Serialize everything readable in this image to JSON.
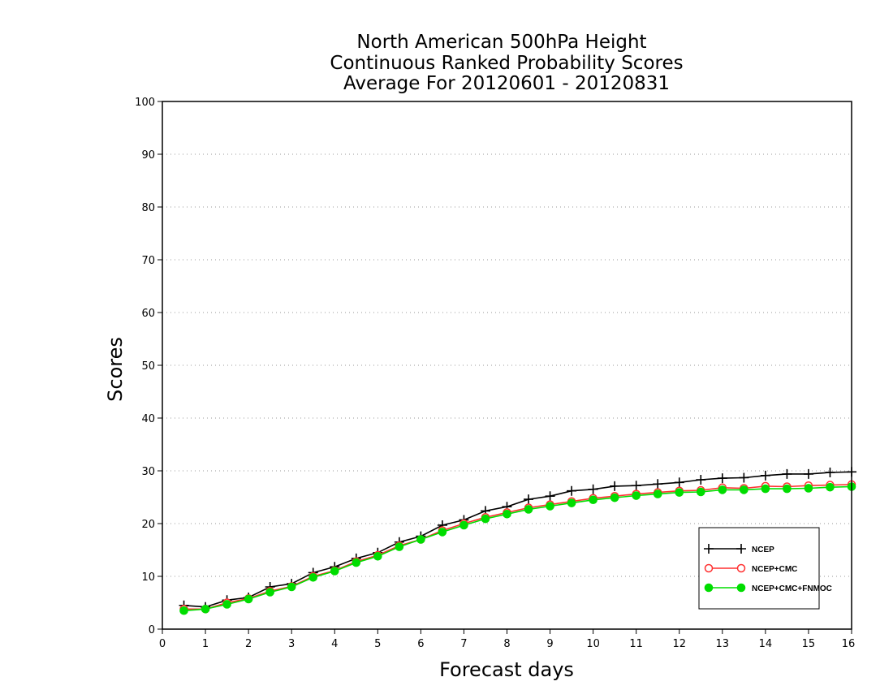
{
  "chart_data": {
    "type": "line",
    "title": [
      "North American 500hPa Height",
      "Continuous Ranked Probability Scores",
      "Average For 20120601 - 20120831"
    ],
    "xlabel": "Forecast days",
    "ylabel": "Scores",
    "xlim": [
      0,
      16
    ],
    "ylim": [
      0,
      100
    ],
    "xticks": [
      0,
      1,
      2,
      3,
      4,
      5,
      6,
      7,
      8,
      9,
      10,
      11,
      12,
      13,
      14,
      15,
      16
    ],
    "yticks": [
      0,
      10,
      20,
      30,
      40,
      50,
      60,
      70,
      80,
      90,
      100
    ],
    "grid": "horizontal dotted",
    "legend_position": "bottom-right",
    "x": [
      0.5,
      1,
      1.5,
      2,
      2.5,
      3,
      3.5,
      4,
      4.5,
      5,
      5.5,
      6,
      6.5,
      7,
      7.5,
      8,
      8.5,
      9,
      9.5,
      10,
      10.5,
      11,
      11.5,
      12,
      12.5,
      13,
      13.5,
      14,
      14.5,
      15,
      15.5,
      16
    ],
    "series": [
      {
        "name": "NCEP",
        "color": "#000000",
        "marker": "plus",
        "values": [
          4.5,
          4.2,
          5.5,
          6.0,
          8.0,
          8.6,
          10.7,
          11.8,
          13.4,
          14.5,
          16.5,
          17.6,
          19.7,
          20.7,
          22.4,
          23.2,
          24.6,
          25.2,
          26.2,
          26.5,
          27.1,
          27.2,
          27.5,
          27.8,
          28.3,
          28.6,
          28.7,
          29.1,
          29.4,
          29.4,
          29.7,
          29.8
        ]
      },
      {
        "name": "NCEP+CMC",
        "color": "#ff3030",
        "marker": "open-circle",
        "values": [
          3.8,
          3.8,
          5.0,
          5.8,
          7.2,
          8.1,
          10.0,
          11.1,
          12.8,
          14.0,
          15.8,
          17.0,
          18.7,
          20.0,
          21.2,
          22.1,
          23.0,
          23.6,
          24.2,
          24.8,
          25.2,
          25.6,
          25.9,
          26.2,
          26.3,
          26.8,
          26.7,
          27.1,
          27.0,
          27.2,
          27.3,
          27.4
        ]
      },
      {
        "name": "NCEP+CMC+FNMOC",
        "color": "#00dd00",
        "marker": "filled-circle",
        "values": [
          3.5,
          3.8,
          4.7,
          5.7,
          7.0,
          8.0,
          9.8,
          11.0,
          12.6,
          13.8,
          15.6,
          17.0,
          18.4,
          19.7,
          20.9,
          21.8,
          22.7,
          23.3,
          23.9,
          24.5,
          24.9,
          25.3,
          25.6,
          25.9,
          26.0,
          26.4,
          26.4,
          26.6,
          26.6,
          26.7,
          26.9,
          27.0
        ]
      }
    ]
  }
}
